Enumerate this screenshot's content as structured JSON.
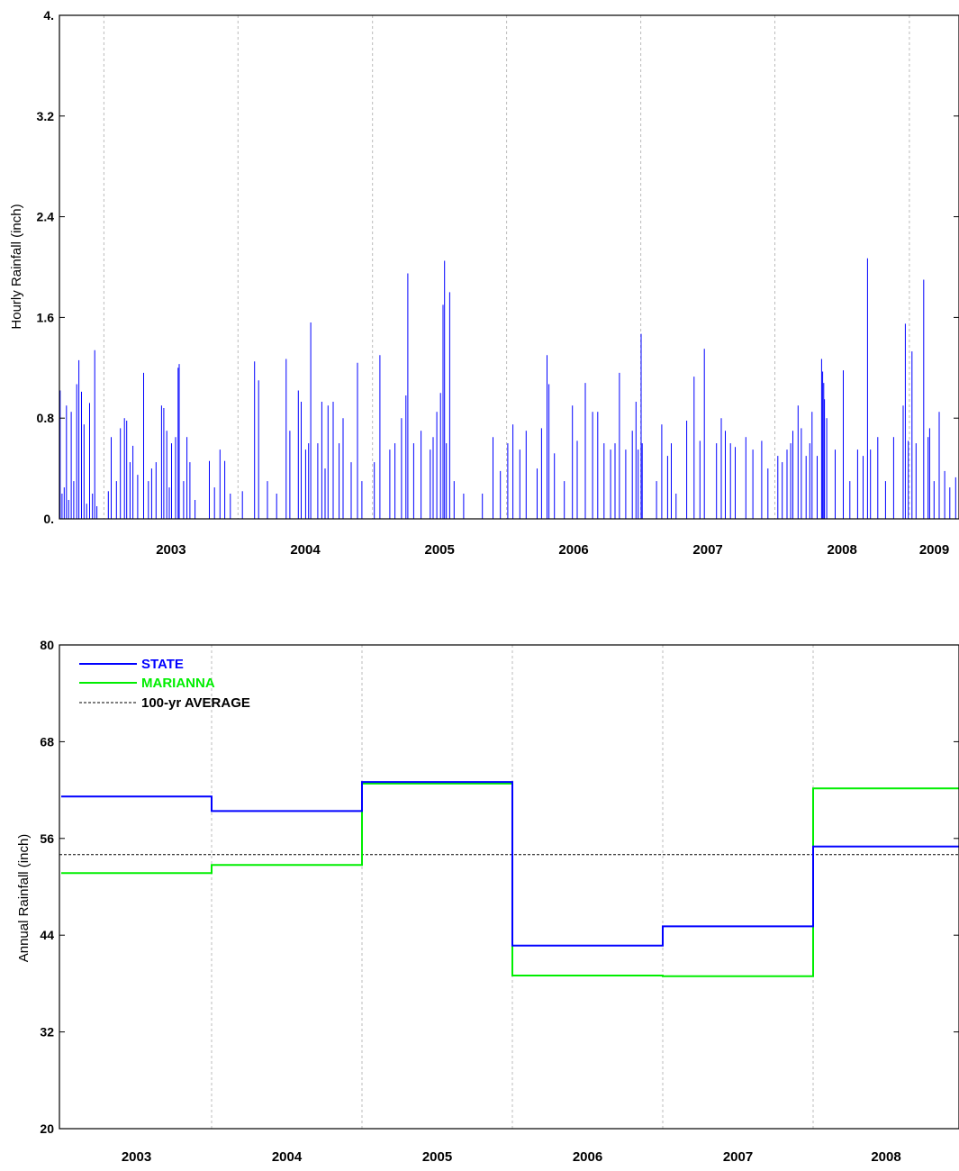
{
  "chart_data": [
    {
      "type": "bar",
      "ylabel": "Hourly Rainfall (inch)",
      "xlabel": "",
      "ylim": [
        0,
        4
      ],
      "ytick_labels": [
        "0.",
        "0.8",
        "1.6",
        "2.4",
        "3.2",
        "4."
      ],
      "year_labels": [
        "2003",
        "2004",
        "2005",
        "2006",
        "2007",
        "2008",
        "2009"
      ],
      "grid": "vertical dotted at year boundaries",
      "color": "#0000ff",
      "x_unit": "date",
      "x_range": [
        "2002-09-01",
        "2009-05-15"
      ],
      "year_boundaries": [
        "2002-12-31",
        "2003-12-31",
        "2004-12-31",
        "2005-12-31",
        "2006-12-31",
        "2007-12-31",
        "2008-12-31"
      ],
      "points": [
        [
          "2002-09-03",
          1.02
        ],
        [
          "2002-09-08",
          0.2
        ],
        [
          "2002-09-14",
          0.25
        ],
        [
          "2002-09-20",
          0.9
        ],
        [
          "2002-09-26",
          0.15
        ],
        [
          "2002-10-03",
          0.85
        ],
        [
          "2002-10-10",
          0.3
        ],
        [
          "2002-10-18",
          1.07
        ],
        [
          "2002-10-24",
          1.26
        ],
        [
          "2002-10-31",
          1.01
        ],
        [
          "2002-11-07",
          0.75
        ],
        [
          "2002-11-14",
          0.12
        ],
        [
          "2002-11-22",
          0.92
        ],
        [
          "2002-11-30",
          0.2
        ],
        [
          "2002-12-06",
          1.34
        ],
        [
          "2002-12-12",
          0.1
        ],
        [
          "2003-01-12",
          0.22
        ],
        [
          "2003-01-20",
          0.65
        ],
        [
          "2003-02-03",
          0.3
        ],
        [
          "2003-02-14",
          0.72
        ],
        [
          "2003-02-25",
          0.8
        ],
        [
          "2003-03-03",
          0.78
        ],
        [
          "2003-03-12",
          0.45
        ],
        [
          "2003-03-20",
          0.58
        ],
        [
          "2003-04-02",
          0.35
        ],
        [
          "2003-04-18",
          1.16
        ],
        [
          "2003-05-01",
          0.3
        ],
        [
          "2003-05-10",
          0.4
        ],
        [
          "2003-05-22",
          0.45
        ],
        [
          "2003-06-06",
          0.9
        ],
        [
          "2003-06-12",
          0.88
        ],
        [
          "2003-06-20",
          0.7
        ],
        [
          "2003-06-27",
          0.25
        ],
        [
          "2003-07-03",
          0.6
        ],
        [
          "2003-07-14",
          0.65
        ],
        [
          "2003-07-21",
          1.2
        ],
        [
          "2003-07-24",
          1.23
        ],
        [
          "2003-08-05",
          0.3
        ],
        [
          "2003-08-14",
          0.65
        ],
        [
          "2003-08-22",
          0.45
        ],
        [
          "2003-09-05",
          0.15
        ],
        [
          "2003-10-14",
          0.46
        ],
        [
          "2003-10-28",
          0.25
        ],
        [
          "2003-11-12",
          0.55
        ],
        [
          "2003-11-25",
          0.46
        ],
        [
          "2003-12-10",
          0.2
        ],
        [
          "2004-01-12",
          0.22
        ],
        [
          "2004-02-14",
          1.25
        ],
        [
          "2004-02-25",
          1.1
        ],
        [
          "2004-03-20",
          0.3
        ],
        [
          "2004-04-14",
          0.2
        ],
        [
          "2004-05-10",
          1.27
        ],
        [
          "2004-05-20",
          0.7
        ],
        [
          "2004-06-12",
          1.02
        ],
        [
          "2004-06-20",
          0.93
        ],
        [
          "2004-07-02",
          0.55
        ],
        [
          "2004-07-10",
          0.6
        ],
        [
          "2004-07-16",
          1.56
        ],
        [
          "2004-08-04",
          0.6
        ],
        [
          "2004-08-15",
          0.93
        ],
        [
          "2004-08-24",
          0.4
        ],
        [
          "2004-09-01",
          0.9
        ],
        [
          "2004-09-15",
          0.93
        ],
        [
          "2004-10-01",
          0.6
        ],
        [
          "2004-10-12",
          0.8
        ],
        [
          "2004-11-03",
          0.45
        ],
        [
          "2004-11-20",
          1.24
        ],
        [
          "2004-12-02",
          0.3
        ],
        [
          "2005-01-05",
          0.45
        ],
        [
          "2005-01-20",
          1.3
        ],
        [
          "2005-02-16",
          0.55
        ],
        [
          "2005-03-02",
          0.6
        ],
        [
          "2005-03-20",
          0.8
        ],
        [
          "2005-04-01",
          0.98
        ],
        [
          "2005-04-06",
          1.95
        ],
        [
          "2005-04-22",
          0.6
        ],
        [
          "2005-05-12",
          0.7
        ],
        [
          "2005-06-06",
          0.55
        ],
        [
          "2005-06-14",
          0.65
        ],
        [
          "2005-06-24",
          0.85
        ],
        [
          "2005-07-04",
          1.0
        ],
        [
          "2005-07-11",
          1.7
        ],
        [
          "2005-07-15",
          2.05
        ],
        [
          "2005-07-20",
          0.6
        ],
        [
          "2005-07-29",
          1.8
        ],
        [
          "2005-08-10",
          0.3
        ],
        [
          "2005-09-05",
          0.2
        ],
        [
          "2005-10-26",
          0.2
        ],
        [
          "2005-11-24",
          0.65
        ],
        [
          "2005-12-14",
          0.38
        ],
        [
          "2006-01-03",
          0.6
        ],
        [
          "2006-01-17",
          0.75
        ],
        [
          "2006-02-05",
          0.55
        ],
        [
          "2006-02-22",
          0.7
        ],
        [
          "2006-03-24",
          0.4
        ],
        [
          "2006-04-05",
          0.72
        ],
        [
          "2006-04-20",
          1.3
        ],
        [
          "2006-04-25",
          1.07
        ],
        [
          "2006-05-10",
          0.52
        ],
        [
          "2006-06-06",
          0.3
        ],
        [
          "2006-06-28",
          0.9
        ],
        [
          "2006-07-11",
          0.62
        ],
        [
          "2006-08-02",
          1.08
        ],
        [
          "2006-08-22",
          0.85
        ],
        [
          "2006-09-05",
          0.85
        ],
        [
          "2006-09-22",
          0.6
        ],
        [
          "2006-10-10",
          0.55
        ],
        [
          "2006-10-22",
          0.6
        ],
        [
          "2006-11-03",
          1.16
        ],
        [
          "2006-11-20",
          0.55
        ],
        [
          "2006-12-08",
          0.7
        ],
        [
          "2006-12-18",
          0.93
        ],
        [
          "2006-12-24",
          0.55
        ],
        [
          "2007-01-01",
          1.47
        ],
        [
          "2007-01-04",
          0.6
        ],
        [
          "2007-02-12",
          0.3
        ],
        [
          "2007-02-26",
          0.75
        ],
        [
          "2007-03-14",
          0.5
        ],
        [
          "2007-03-24",
          0.6
        ],
        [
          "2007-04-06",
          0.2
        ],
        [
          "2007-05-05",
          0.78
        ],
        [
          "2007-05-25",
          1.13
        ],
        [
          "2007-06-10",
          0.62
        ],
        [
          "2007-06-22",
          1.35
        ],
        [
          "2007-07-25",
          0.6
        ],
        [
          "2007-08-07",
          0.8
        ],
        [
          "2007-08-18",
          0.7
        ],
        [
          "2007-09-01",
          0.6
        ],
        [
          "2007-09-14",
          0.57
        ],
        [
          "2007-10-13",
          0.65
        ],
        [
          "2007-11-01",
          0.55
        ],
        [
          "2007-11-25",
          0.62
        ],
        [
          "2007-12-12",
          0.4
        ],
        [
          "2008-01-08",
          0.5
        ],
        [
          "2008-01-20",
          0.45
        ],
        [
          "2008-02-02",
          0.55
        ],
        [
          "2008-02-12",
          0.6
        ],
        [
          "2008-02-18",
          0.7
        ],
        [
          "2008-03-03",
          0.9
        ],
        [
          "2008-03-12",
          0.72
        ],
        [
          "2008-03-25",
          0.5
        ],
        [
          "2008-04-04",
          0.6
        ],
        [
          "2008-04-10",
          0.85
        ],
        [
          "2008-04-24",
          0.5
        ],
        [
          "2008-05-06",
          1.27
        ],
        [
          "2008-05-09",
          1.17
        ],
        [
          "2008-05-12",
          1.08
        ],
        [
          "2008-05-14",
          0.95
        ],
        [
          "2008-05-20",
          0.8
        ],
        [
          "2008-06-12",
          0.55
        ],
        [
          "2008-07-04",
          1.18
        ],
        [
          "2008-07-22",
          0.3
        ],
        [
          "2008-08-12",
          0.55
        ],
        [
          "2008-08-27",
          0.5
        ],
        [
          "2008-09-08",
          2.07
        ],
        [
          "2008-09-16",
          0.55
        ],
        [
          "2008-10-06",
          0.65
        ],
        [
          "2008-10-27",
          0.3
        ],
        [
          "2008-11-18",
          0.65
        ],
        [
          "2008-12-14",
          0.9
        ],
        [
          "2008-12-20",
          1.55
        ],
        [
          "2008-12-28",
          0.62
        ],
        [
          "2009-01-07",
          1.33
        ],
        [
          "2009-01-18",
          0.6
        ],
        [
          "2009-02-08",
          1.9
        ],
        [
          "2009-02-20",
          0.65
        ],
        [
          "2009-02-24",
          0.72
        ],
        [
          "2009-03-08",
          0.3
        ],
        [
          "2009-03-22",
          0.85
        ],
        [
          "2009-04-06",
          0.38
        ],
        [
          "2009-04-20",
          0.25
        ],
        [
          "2009-05-06",
          0.33
        ]
      ]
    },
    {
      "type": "line",
      "ylabel": "Annual Rainfall (inch)",
      "xlabel": "",
      "ylim": [
        20,
        80
      ],
      "yticks": [
        20,
        32,
        44,
        56,
        68,
        80
      ],
      "categories": [
        "2003",
        "2004",
        "2005",
        "2006",
        "2007",
        "2008"
      ],
      "grid": "vertical dotted at year boundaries",
      "legend_position": "top-left",
      "series": [
        {
          "name": "STATE",
          "color": "#0000ff",
          "values": [
            61.2,
            59.4,
            63.0,
            42.7,
            45.1,
            55.0
          ]
        },
        {
          "name": "MARIANNA",
          "color": "#00ee00",
          "values": [
            51.7,
            52.7,
            62.8,
            39.0,
            38.9,
            62.2
          ]
        },
        {
          "name": "100-yr AVERAGE",
          "color": "#000000",
          "dash": true,
          "constant": 54.0
        }
      ]
    }
  ]
}
